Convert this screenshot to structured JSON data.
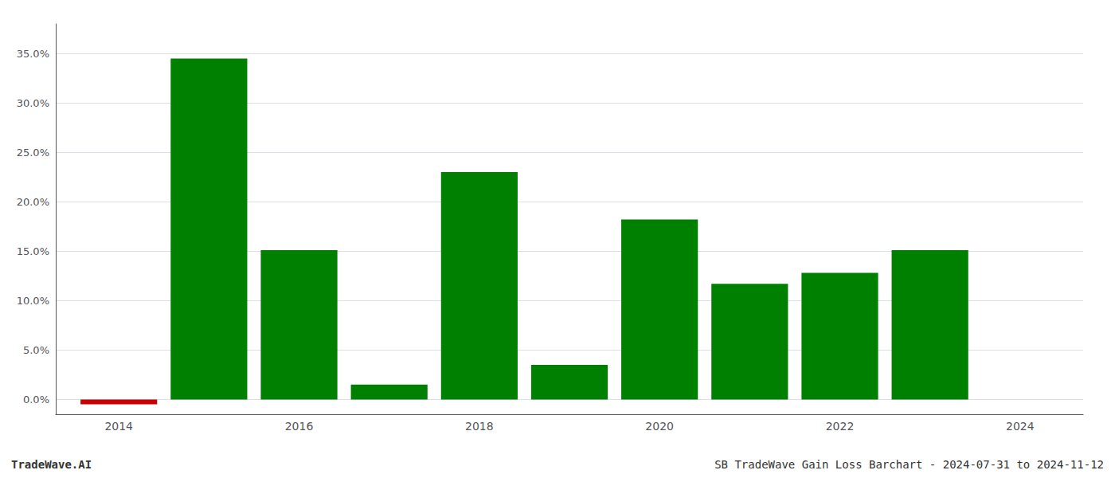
{
  "chart_data": {
    "type": "bar",
    "x": [
      2014,
      2015,
      2016,
      2017,
      2018,
      2019,
      2020,
      2021,
      2022,
      2023
    ],
    "values": [
      -0.5,
      34.5,
      15.1,
      1.5,
      23.0,
      3.5,
      18.2,
      11.7,
      12.8,
      15.1
    ],
    "colors": [
      "#cc0000",
      "#008000",
      "#008000",
      "#008000",
      "#008000",
      "#008000",
      "#008000",
      "#008000",
      "#008000",
      "#008000"
    ],
    "xlim": [
      2013.3,
      2024.7
    ],
    "xticks": [
      2014,
      2016,
      2018,
      2020,
      2022,
      2024
    ],
    "ylim": [
      -1.5,
      38
    ],
    "yticks": [
      {
        "value": 0.0,
        "label": "0.0%"
      },
      {
        "value": 5.0,
        "label": "5.0%"
      },
      {
        "value": 10.0,
        "label": "10.0%"
      },
      {
        "value": 15.0,
        "label": "15.0%"
      },
      {
        "value": 20.0,
        "label": "20.0%"
      },
      {
        "value": 25.0,
        "label": "25.0%"
      },
      {
        "value": 30.0,
        "label": "30.0%"
      },
      {
        "value": 35.0,
        "label": "35.0%"
      }
    ],
    "grid": true,
    "annotations": [
      "TradeWave.AI",
      "SB TradeWave Gain Loss Barchart - 2024-07-31 to 2024-11-12"
    ]
  }
}
